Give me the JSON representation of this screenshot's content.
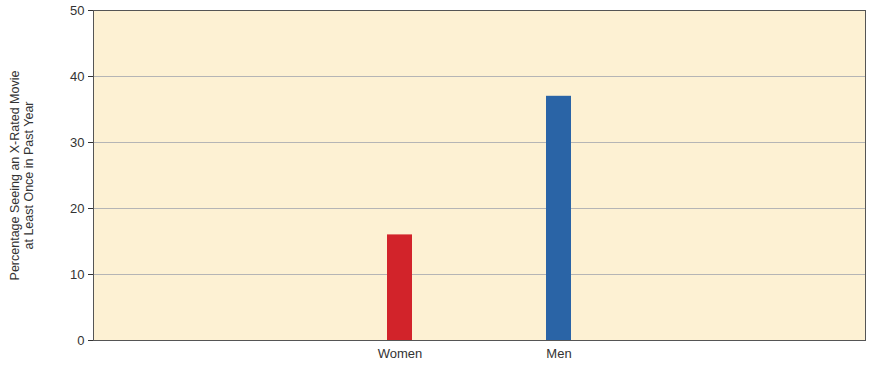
{
  "chart_data": {
    "type": "bar",
    "categories": [
      null,
      "Women",
      "Men",
      null
    ],
    "values": [
      null,
      16,
      37,
      null
    ],
    "colors": [
      null,
      "#d2232a",
      "#2a64a6",
      null
    ],
    "y_label": "Percentage Seeing an X-Rated Movie\nat Least Once in Past Year",
    "ylim": [
      0,
      50
    ],
    "yticks": [
      0,
      10,
      20,
      30,
      40,
      50
    ],
    "grid": true
  }
}
